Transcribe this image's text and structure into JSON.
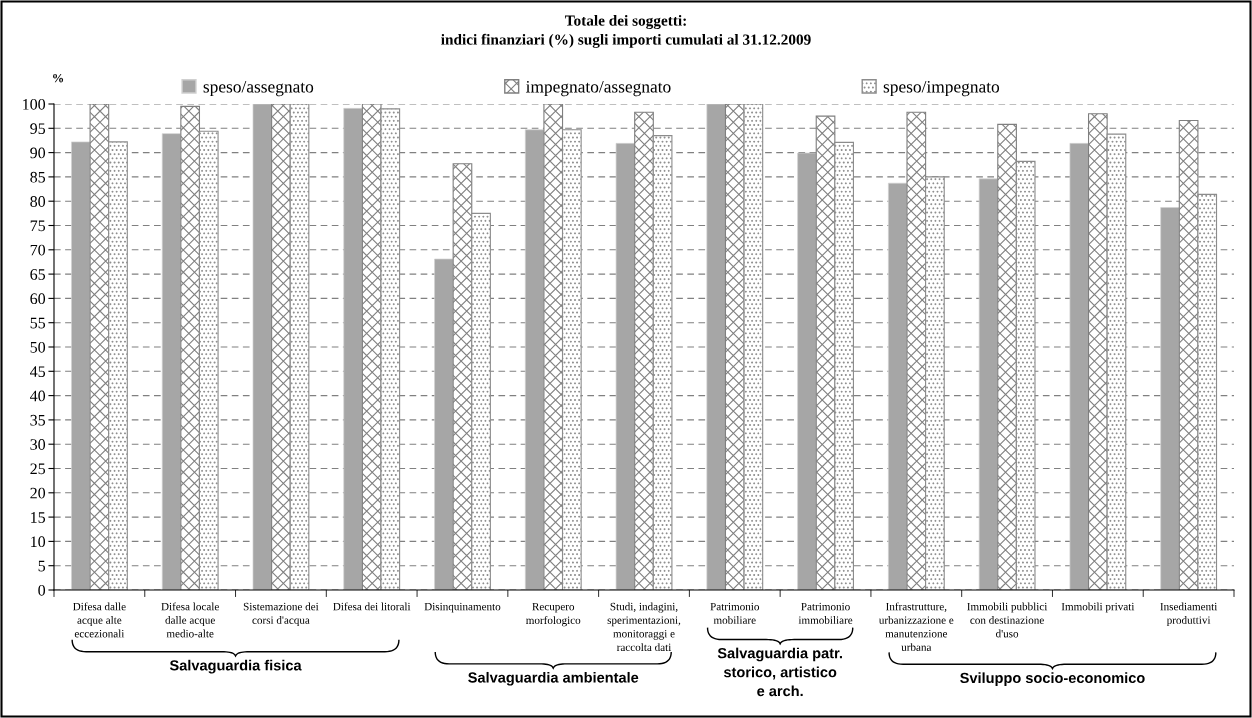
{
  "chart_data": {
    "type": "bar",
    "title": "Totale dei soggetti:\nindici finanziari (%) sugli importi cumulati al 31.12.2009",
    "ylabel": "%",
    "categories": [
      "Difesa dalle\nacque alte\neccezionali",
      "Difesa locale\ndalle acque\nmedio-alte",
      "Sistemazione dei\ncorsi d'acqua",
      "Difesa dei litorali",
      "Disinquinamento",
      "Recupero\nmorfologico",
      "Studi, indagini,\nsperimentazioni,\nmonitoraggi e\nraccolta dati",
      "Patrimonio\nmobiliare",
      "Patrimonio\nimmobiliare",
      "Infrastrutture,\nurbanizzazione e\nmanutenzione\nurbana",
      "Immobili pubblici\ncon destinazione\nd'uso",
      "Immobili privati",
      "Insediamenti\nproduttivi"
    ],
    "series": [
      {
        "name": "speso/assegnato",
        "color": "#a6a6a6",
        "values": [
          92.2,
          93.9,
          100,
          99.1,
          68.1,
          94.7,
          91.9,
          100,
          89.9,
          83.7,
          84.6,
          91.9,
          78.7
        ]
      },
      {
        "name": "impegnato/assegnato",
        "color": "#7f7f7f",
        "values": [
          100,
          99.5,
          100,
          100,
          87.7,
          100,
          98.3,
          100,
          97.5,
          98.3,
          95.8,
          98.0,
          96.6
        ]
      },
      {
        "name": "speso/impegnato",
        "color": "#8c8c8c",
        "values": [
          92.2,
          94.4,
          100,
          99.0,
          77.5,
          94.7,
          93.5,
          100,
          92.1,
          85.0,
          88.2,
          93.8,
          81.4
        ]
      }
    ],
    "ylim": [
      0,
      100
    ],
    "yticks": [
      0,
      5,
      10,
      15,
      20,
      25,
      30,
      35,
      40,
      45,
      50,
      55,
      60,
      65,
      70,
      75,
      80,
      85,
      90,
      95,
      100
    ],
    "grid": "y",
    "legend": "top",
    "annotations": [
      "Salvaguardia fisica",
      "Salvaguardia ambientale",
      "Salvaguardia patr.\nstorico, artistico\ne arch.",
      "Sviluppo socio-economico"
    ]
  }
}
